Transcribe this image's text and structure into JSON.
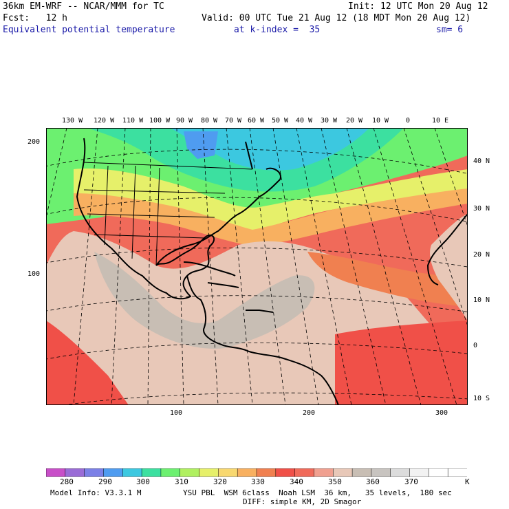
{
  "header": {
    "model_title": "36km EM-WRF -- NCAR/MMM for TC",
    "init": "Init: 12 UTC Mon 20 Aug 12",
    "fcst": "Fcst:   12 h",
    "valid": "Valid: 00 UTC Tue 21 Aug 12 (18 MDT Mon 20 Aug 12)",
    "field": "Equivalent potential temperature",
    "level": "at k-index =  35",
    "smoothing": "sm= 6"
  },
  "map": {
    "lon_labels": [
      "130 W",
      "120 W",
      "110 W",
      "100 W",
      "90 W",
      "80 W",
      "70 W",
      "60 W",
      "50 W",
      "40 W",
      "30 W",
      "20 W",
      "10 W",
      "0",
      "10 E"
    ],
    "lat_labels": [
      "40 N",
      "30 N",
      "20 N",
      "10 N",
      "0",
      "10 S"
    ],
    "grid_y_labels": [
      "200",
      "100"
    ],
    "grid_x_labels": [
      "100",
      "200",
      "300"
    ]
  },
  "colorbar": {
    "labels": [
      "280",
      "290",
      "300",
      "310",
      "320",
      "330",
      "340",
      "350",
      "360",
      "370"
    ],
    "unit": "K",
    "colors": [
      "#c84fc8",
      "#9a6cd6",
      "#7b80e6",
      "#4f9cf0",
      "#3cc8e0",
      "#3ce0a0",
      "#6cf070",
      "#b0f060",
      "#e6f06a",
      "#f8d870",
      "#f8b060",
      "#f08050",
      "#f05048",
      "#f06a5a",
      "#f0a090",
      "#e8c8b8",
      "#c8beb4",
      "#c8c4c0",
      "#dcdcdc",
      "#f2f2f2",
      "#ffffff",
      "#ffffff"
    ]
  },
  "footer": {
    "model_info": "Model Info: V3.3.1 M",
    "physics": "YSU PBL  WSM 6class  Noah LSM  36 km,   35 levels,  180 sec",
    "diffusion": "DIFF: simple KM, 2D Smagor"
  }
}
